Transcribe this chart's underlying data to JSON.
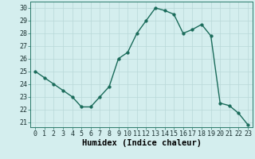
{
  "x": [
    0,
    1,
    2,
    3,
    4,
    5,
    6,
    7,
    8,
    9,
    10,
    11,
    12,
    13,
    14,
    15,
    16,
    17,
    18,
    19,
    20,
    21,
    22,
    23
  ],
  "y": [
    25.0,
    24.5,
    24.0,
    23.5,
    23.0,
    22.2,
    22.2,
    23.0,
    23.8,
    26.0,
    26.5,
    28.0,
    29.0,
    30.0,
    29.8,
    29.5,
    28.0,
    28.3,
    28.7,
    27.8,
    22.5,
    22.3,
    21.7,
    20.8
  ],
  "line_color": "#1a6b5a",
  "marker_color": "#1a6b5a",
  "bg_color": "#d4eeee",
  "grid_color": "#b8d8d8",
  "xlabel": "Humidex (Indice chaleur)",
  "ylim": [
    20.6,
    30.5
  ],
  "yticks": [
    21,
    22,
    23,
    24,
    25,
    26,
    27,
    28,
    29,
    30
  ],
  "xticks": [
    0,
    1,
    2,
    3,
    4,
    5,
    6,
    7,
    8,
    9,
    10,
    11,
    12,
    13,
    14,
    15,
    16,
    17,
    18,
    19,
    20,
    21,
    22,
    23
  ],
  "xlabel_fontsize": 7.5,
  "tick_fontsize": 6,
  "line_width": 1.0,
  "marker_size": 2.5
}
